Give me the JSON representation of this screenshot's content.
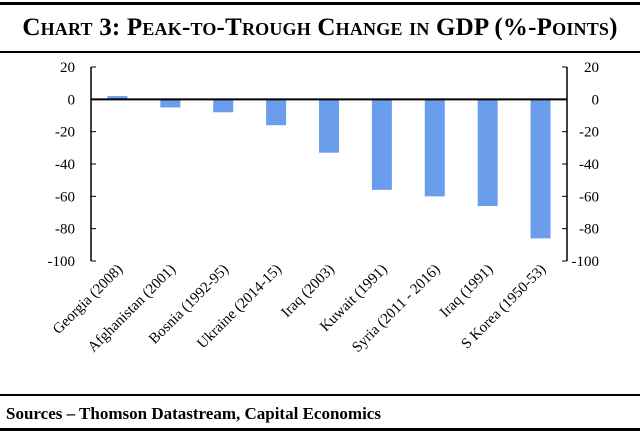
{
  "chart_data": {
    "type": "bar",
    "title": "Chart 3: Peak-to-Trough Change in GDP (%-Points)",
    "categories": [
      "Georgia (2008)",
      "Afghanistan (2001)",
      "Bosnia (1992-95)",
      "Ukraine (2014-15)",
      "Iraq (2003)",
      "Kuwait (1991)",
      "Syria (2011 - 2016)",
      "Iraq (1991)",
      "S Korea (1950-53)"
    ],
    "values": [
      2,
      -5,
      -8,
      -16,
      -33,
      -56,
      -60,
      -66,
      -86
    ],
    "ylim": [
      -100,
      20
    ],
    "yticks": [
      "20",
      "0",
      "-20",
      "-40",
      "-60",
      "-80",
      "-100"
    ],
    "y_axis_both_sides": true,
    "xlabel": "",
    "ylabel": "",
    "bar_color": "#6b9ded",
    "source": "Sources – Thomson Datastream, Capital Economics"
  }
}
